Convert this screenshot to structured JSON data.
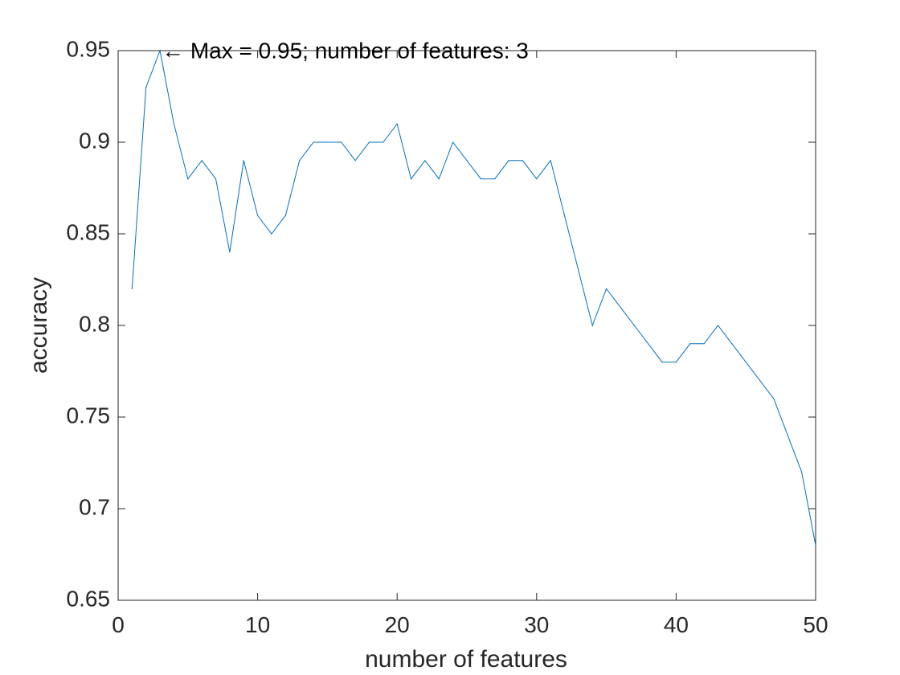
{
  "chart_data": {
    "type": "line",
    "title": "",
    "xlabel": "number of features",
    "ylabel": "accuracy",
    "xlim": [
      0,
      50
    ],
    "ylim": [
      0.65,
      0.95
    ],
    "xticks": [
      0,
      10,
      20,
      30,
      40,
      50
    ],
    "xtick_labels": [
      "0",
      "10",
      "20",
      "30",
      "40",
      "50"
    ],
    "yticks": [
      0.65,
      0.7,
      0.75,
      0.8,
      0.85,
      0.9,
      0.95
    ],
    "ytick_labels": [
      "0.65",
      "0.7",
      "0.75",
      "0.8",
      "0.85",
      "0.9",
      "0.95"
    ],
    "grid": false,
    "series": [
      {
        "color": "#0072BD",
        "x": [
          1,
          2,
          3,
          4,
          5,
          6,
          7,
          8,
          9,
          10,
          11,
          12,
          13,
          14,
          15,
          16,
          17,
          18,
          19,
          20,
          21,
          22,
          23,
          24,
          25,
          26,
          27,
          28,
          29,
          30,
          31,
          32,
          33,
          34,
          35,
          36,
          37,
          38,
          39,
          40,
          41,
          42,
          43,
          44,
          45,
          46,
          47,
          48,
          49,
          50
        ],
        "y": [
          0.82,
          0.93,
          0.95,
          0.91,
          0.88,
          0.89,
          0.88,
          0.84,
          0.89,
          0.86,
          0.85,
          0.86,
          0.89,
          0.9,
          0.9,
          0.9,
          0.89,
          0.9,
          0.9,
          0.91,
          0.88,
          0.89,
          0.88,
          0.9,
          0.89,
          0.88,
          0.88,
          0.89,
          0.89,
          0.88,
          0.89,
          0.86,
          0.83,
          0.8,
          0.82,
          0.81,
          0.8,
          0.79,
          0.78,
          0.78,
          0.79,
          0.79,
          0.8,
          0.79,
          0.78,
          0.77,
          0.76,
          0.74,
          0.72,
          0.68
        ]
      }
    ],
    "annotation": {
      "text": "← Max = 0.95; number of features: 3",
      "x": 3,
      "y": 0.95
    }
  }
}
